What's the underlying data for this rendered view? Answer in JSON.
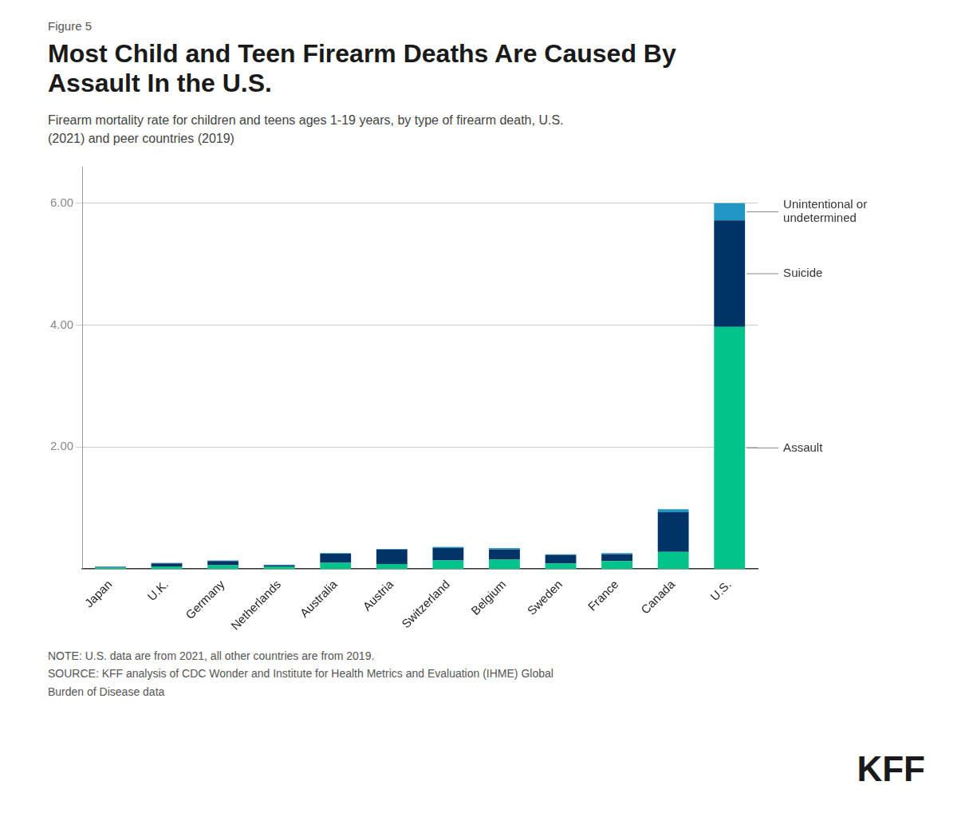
{
  "chart_data": {
    "type": "bar",
    "figure_label": "Figure 5",
    "title": "Most Child and Teen Firearm Deaths Are Caused By\nAssault In the U.S.",
    "subtitle": "Firearm mortality rate for children and teens ages 1-19 years, by type of firearm death, U.S.\n(2021) and peer countries (2019)",
    "categories": [
      "Japan",
      "U.K.",
      "Germany",
      "Netherlands",
      "Australia",
      "Austria",
      "Switzerland",
      "Belgium",
      "Sweden",
      "France",
      "Canada",
      "U.S."
    ],
    "series": [
      {
        "name": "Assault",
        "color": "#00C389",
        "values": [
          0.02,
          0.04,
          0.06,
          0.04,
          0.1,
          0.08,
          0.14,
          0.15,
          0.09,
          0.13,
          0.28,
          3.97
        ]
      },
      {
        "name": "Suicide",
        "color": "#003366",
        "values": [
          0.01,
          0.05,
          0.07,
          0.02,
          0.15,
          0.24,
          0.2,
          0.17,
          0.14,
          0.11,
          0.65,
          1.75
        ]
      },
      {
        "name": "Unintentional or\nundetermined",
        "color": "#2196C4",
        "values": [
          0.01,
          0.01,
          0.01,
          0.01,
          0.01,
          0.01,
          0.02,
          0.02,
          0.01,
          0.02,
          0.05,
          0.28
        ]
      }
    ],
    "stacked": true,
    "ylim": [
      0,
      6.6
    ],
    "yticks": [
      {
        "value": 2,
        "label": "2.00"
      },
      {
        "value": 4,
        "label": "4.00"
      },
      {
        "value": 6,
        "label": "6.00"
      }
    ],
    "grid": true,
    "note": "NOTE: U.S. data are from 2021, all other countries are from 2019.\nSOURCE: KFF analysis of CDC Wonder and Institute for Health Metrics and Evaluation (IHME) Global\nBurden of Disease data",
    "logo": "KFF"
  }
}
